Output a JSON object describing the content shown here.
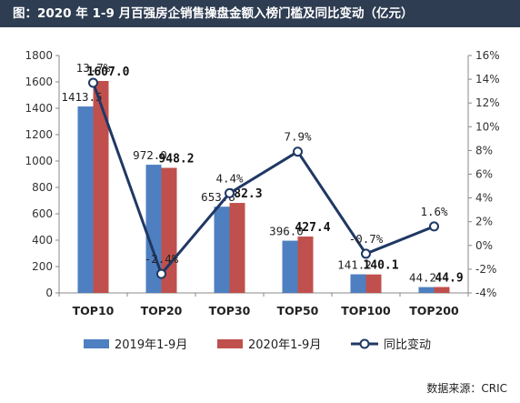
{
  "title": "图：2020 年 1-9 月百强房企销售操盘金额入榜门槛及同比变动（亿元）",
  "source": "数据来源：CRIC",
  "colors": {
    "bar_2019": "#4e7fc1",
    "bar_2020": "#c0504d",
    "line": "#1f3864",
    "title_bg": "#2e3d52"
  },
  "chart_data": {
    "type": "bar",
    "categories": [
      "TOP10",
      "TOP20",
      "TOP30",
      "TOP50",
      "TOP100",
      "TOP200"
    ],
    "series": [
      {
        "name": "2019年1-9月",
        "type": "bar",
        "axis": "left",
        "values": [
          1413.5,
          972.0,
          653.8,
          396.0,
          141.2,
          44.2
        ],
        "labels": [
          "1413.5",
          "972.0",
          "653.8",
          "396.0",
          "141.2",
          "44.2"
        ]
      },
      {
        "name": "2020年1-9月",
        "type": "bar",
        "axis": "left",
        "values": [
          1607.0,
          948.2,
          682.3,
          427.4,
          140.1,
          44.9
        ],
        "labels": [
          "1607.0",
          "948.2",
          "682.3",
          "427.4",
          "140.1",
          "44.9"
        ]
      },
      {
        "name": "同比变动",
        "type": "line",
        "axis": "right",
        "values": [
          13.7,
          -2.4,
          4.4,
          7.9,
          -0.7,
          1.6
        ],
        "labels": [
          "13.7%",
          "-2.4%",
          "4.4%",
          "7.9%",
          "-0.7%",
          "1.6%"
        ]
      }
    ],
    "y_left": {
      "min": 0,
      "max": 1800,
      "step": 200,
      "ticks": [
        "0",
        "200",
        "400",
        "600",
        "800",
        "1000",
        "1200",
        "1400",
        "1600",
        "1800"
      ]
    },
    "y_right": {
      "min": -4,
      "max": 16,
      "step": 2,
      "ticks": [
        "-4%",
        "-2%",
        "0%",
        "2%",
        "4%",
        "6%",
        "8%",
        "10%",
        "12%",
        "14%",
        "16%"
      ]
    },
    "legend_position": "bottom",
    "grid": false
  }
}
